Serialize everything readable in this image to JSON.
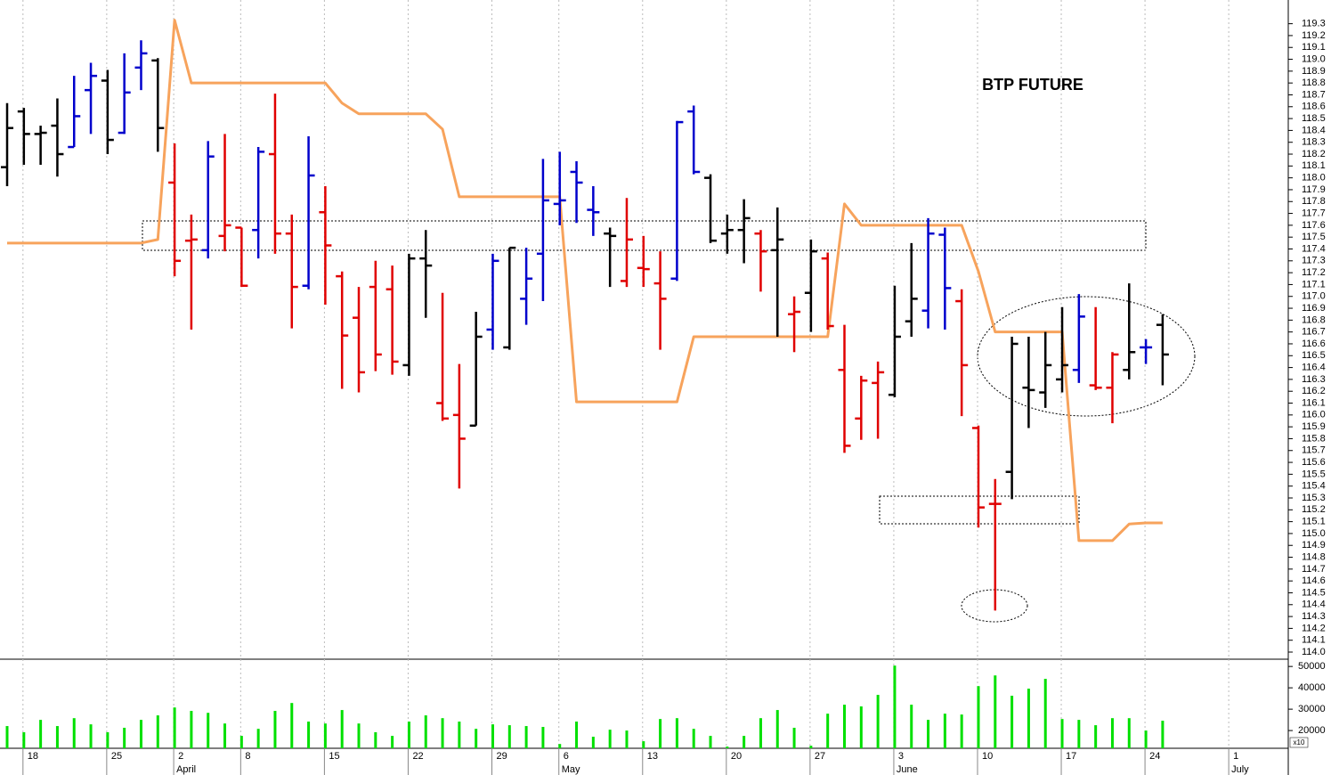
{
  "chart_data": [
    {
      "type": "ohlc",
      "annotation": "BTP FUTURE",
      "categories": [
        null,
        "18",
        null,
        null,
        null,
        null,
        "25",
        null,
        null,
        null,
        "2",
        null,
        null,
        null,
        "8",
        null,
        null,
        null,
        null,
        "15",
        null,
        null,
        null,
        null,
        "22",
        null,
        null,
        null,
        null,
        "29",
        null,
        null,
        null,
        "6",
        null,
        null,
        null,
        null,
        "13",
        null,
        null,
        null,
        null,
        "20",
        null,
        null,
        null,
        null,
        "27",
        null,
        null,
        null,
        null,
        "3",
        null,
        null,
        null,
        null,
        "10",
        null,
        null,
        null,
        null,
        "17",
        null,
        null,
        null,
        null,
        "24",
        null,
        null,
        null,
        null,
        "1",
        null,
        null,
        null
      ],
      "month_labels": [
        "April",
        "May",
        "June",
        "July"
      ],
      "open": [
        118.09,
        118.56,
        118.37,
        118.44,
        118.26,
        118.74,
        118.82,
        118.38,
        118.93,
        118.99,
        117.96,
        117.47,
        117.39,
        117.51,
        117.58,
        117.56,
        118.2,
        117.53,
        117.09,
        117.71,
        117.17,
        116.82,
        117.08,
        117.06,
        116.42,
        117.32,
        116.1,
        116.0,
        115.91,
        116.72,
        116.57,
        116.98,
        117.36,
        117.78,
        118.05,
        117.73,
        117.53,
        117.13,
        117.24,
        117.11,
        117.15,
        118.56,
        118.0,
        117.53,
        117.56,
        117.53,
        117.39,
        116.85,
        117.03,
        117.32,
        116.38,
        115.97,
        116.27,
        116.17,
        116.79,
        116.88,
        117.52,
        116.96,
        115.89,
        115.25,
        115.52,
        116.23,
        116.19,
        116.3,
        116.38,
        116.25,
        116.23,
        116.38,
        116.57,
        116.76,
        null,
        null,
        null,
        null,
        null,
        null,
        null
      ],
      "high": [
        118.63,
        118.59,
        118.44,
        118.67,
        118.86,
        118.97,
        118.91,
        119.05,
        119.16,
        119.01,
        118.29,
        117.69,
        118.31,
        118.37,
        117.58,
        118.26,
        118.71,
        117.69,
        118.35,
        117.93,
        117.21,
        117.08,
        117.3,
        117.26,
        117.36,
        117.56,
        117.03,
        116.43,
        116.87,
        117.36,
        117.41,
        117.41,
        118.16,
        118.22,
        118.14,
        117.93,
        117.58,
        117.83,
        117.51,
        117.38,
        118.48,
        118.61,
        118.03,
        117.69,
        117.82,
        117.56,
        117.75,
        117.0,
        117.48,
        117.37,
        116.76,
        116.33,
        116.45,
        117.09,
        117.45,
        117.66,
        117.58,
        117.06,
        115.91,
        115.46,
        116.66,
        116.66,
        116.7,
        116.91,
        117.02,
        116.91,
        116.53,
        117.11,
        116.64,
        116.85,
        null,
        null,
        null,
        null,
        null,
        null,
        null
      ],
      "low": [
        117.93,
        118.11,
        118.11,
        118.01,
        118.26,
        118.37,
        118.2,
        118.37,
        118.74,
        118.22,
        117.17,
        116.72,
        117.32,
        117.38,
        117.08,
        117.32,
        117.36,
        116.73,
        117.06,
        116.93,
        116.22,
        116.19,
        116.37,
        116.34,
        116.33,
        116.82,
        115.95,
        115.38,
        115.91,
        116.55,
        116.55,
        116.76,
        116.96,
        117.6,
        117.62,
        117.51,
        117.08,
        117.08,
        117.08,
        116.55,
        117.13,
        118.03,
        117.45,
        117.36,
        117.28,
        117.04,
        116.66,
        116.53,
        116.7,
        116.72,
        115.68,
        115.79,
        115.8,
        116.15,
        116.66,
        116.73,
        116.72,
        115.99,
        115.05,
        114.35,
        115.29,
        115.89,
        116.06,
        116.19,
        116.27,
        116.21,
        115.93,
        116.3,
        116.43,
        116.25,
        null,
        null,
        null,
        null,
        null,
        null,
        null
      ],
      "close": [
        118.42,
        118.37,
        118.38,
        118.2,
        118.52,
        118.86,
        118.32,
        118.72,
        119.05,
        118.42,
        117.3,
        117.48,
        118.18,
        117.6,
        117.09,
        118.22,
        117.53,
        117.08,
        118.02,
        117.43,
        116.67,
        116.36,
        116.51,
        116.45,
        117.32,
        117.26,
        115.97,
        115.8,
        116.66,
        117.3,
        117.41,
        117.15,
        117.81,
        117.81,
        117.96,
        117.71,
        117.51,
        117.48,
        117.23,
        116.98,
        118.47,
        118.05,
        117.47,
        117.56,
        117.66,
        117.38,
        117.48,
        116.87,
        117.38,
        116.75,
        115.74,
        116.29,
        116.36,
        116.66,
        116.98,
        117.53,
        117.07,
        116.42,
        115.22,
        115.25,
        116.6,
        116.21,
        116.42,
        116.42,
        116.83,
        116.23,
        116.51,
        116.53,
        116.57,
        116.51,
        null,
        null,
        null,
        null,
        null,
        null,
        null
      ],
      "colors": [
        "#000000",
        "#000000",
        "#000000",
        "#000000",
        "#0000cc",
        "#0000cc",
        "#000000",
        "#0000cc",
        "#0000cc",
        "#000000",
        "#e00000",
        "#e00000",
        "#0000cc",
        "#e00000",
        "#e00000",
        "#0000cc",
        "#e00000",
        "#e00000",
        "#0000cc",
        "#e00000",
        "#e00000",
        "#e00000",
        "#e00000",
        "#e00000",
        "#000000",
        "#000000",
        "#e00000",
        "#e00000",
        "#000000",
        "#0000cc",
        "#000000",
        "#0000cc",
        "#0000cc",
        "#0000cc",
        "#0000cc",
        "#0000cc",
        "#000000",
        "#e00000",
        "#e00000",
        "#e00000",
        "#0000cc",
        "#0000cc",
        "#000000",
        "#000000",
        "#000000",
        "#e00000",
        "#000000",
        "#e00000",
        "#000000",
        "#e00000",
        "#e00000",
        "#e00000",
        "#e00000",
        "#000000",
        "#000000",
        "#0000cc",
        "#0000cc",
        "#e00000",
        "#e00000",
        "#e00000",
        "#000000",
        "#000000",
        "#000000",
        "#000000",
        "#0000cc",
        "#e00000",
        "#e00000",
        "#000000",
        "#0000cc",
        "#000000",
        null,
        null,
        null,
        null,
        null,
        null,
        null
      ],
      "line": {
        "color": "#f7a35c",
        "values": [
          117.45,
          117.45,
          117.45,
          117.45,
          117.45,
          117.45,
          117.45,
          117.45,
          117.45,
          117.48,
          119.33,
          118.8,
          118.8,
          118.8,
          118.8,
          118.8,
          118.8,
          118.8,
          118.8,
          118.8,
          118.63,
          118.54,
          118.54,
          118.54,
          118.54,
          118.54,
          118.41,
          117.84,
          117.84,
          117.84,
          117.84,
          117.84,
          117.84,
          117.84,
          116.11,
          116.11,
          116.11,
          116.11,
          116.11,
          116.11,
          116.11,
          116.66,
          116.66,
          116.66,
          116.66,
          116.66,
          116.66,
          116.66,
          116.66,
          116.66,
          117.78,
          117.6,
          117.6,
          117.6,
          117.6,
          117.6,
          117.6,
          117.6,
          117.21,
          116.7,
          116.7,
          116.7,
          116.7,
          116.7,
          114.94,
          114.94,
          114.94,
          115.08,
          115.09,
          115.09,
          null,
          null,
          null,
          null,
          null,
          null,
          null
        ]
      },
      "ylim": [
        113.94,
        119.5
      ],
      "yticks": [
        {
          "value": 114,
          "label": "114.0"
        },
        114.1,
        114.2,
        114.3,
        114.4,
        114.5,
        114.6,
        114.7,
        114.8,
        114.9,
        {
          "value": 115,
          "label": "115.0"
        },
        115.1,
        115.2,
        115.3,
        115.4,
        115.5,
        115.6,
        115.7,
        115.8,
        115.9,
        {
          "value": 116,
          "label": "116.0"
        },
        116.1,
        116.2,
        116.3,
        116.4,
        116.5,
        116.6,
        116.7,
        116.8,
        116.9,
        {
          "value": 117,
          "label": "117.0"
        },
        117.1,
        117.2,
        117.3,
        117.4,
        117.5,
        117.6,
        117.7,
        117.8,
        117.9,
        {
          "value": 118,
          "label": "118.0"
        },
        118.1,
        118.2,
        118.3,
        118.4,
        118.5,
        118.6,
        118.7,
        118.8,
        118.9,
        {
          "value": 119,
          "label": "119.0"
        },
        119.1,
        119.2,
        119.3
      ],
      "grid": true
    },
    {
      "type": "bar",
      "values": [
        22100,
        19200,
        25000,
        22100,
        25800,
        22900,
        19200,
        21300,
        25000,
        27100,
        30800,
        29200,
        28300,
        23300,
        17500,
        20800,
        29200,
        32900,
        24200,
        23300,
        29600,
        23300,
        19200,
        17500,
        24200,
        27100,
        25800,
        24200,
        20800,
        22900,
        22500,
        22100,
        21700,
        13700,
        24200,
        17100,
        20400,
        20000,
        15000,
        25400,
        25800,
        20800,
        17500,
        12500,
        17500,
        25800,
        29600,
        21300,
        12900,
        27900,
        32100,
        31300,
        36700,
        50400,
        32100,
        25000,
        27900,
        27500,
        40800,
        45800,
        36300,
        39600,
        44200,
        25400,
        25000,
        22500,
        25800,
        25800,
        20000,
        24600,
        null,
        null,
        null,
        null,
        null,
        null,
        null
      ],
      "color": "#00e000",
      "unit_label": "x10",
      "ylim": [
        11700,
        53400
      ],
      "yticks": [
        20000,
        30000,
        40000,
        50000
      ]
    }
  ]
}
